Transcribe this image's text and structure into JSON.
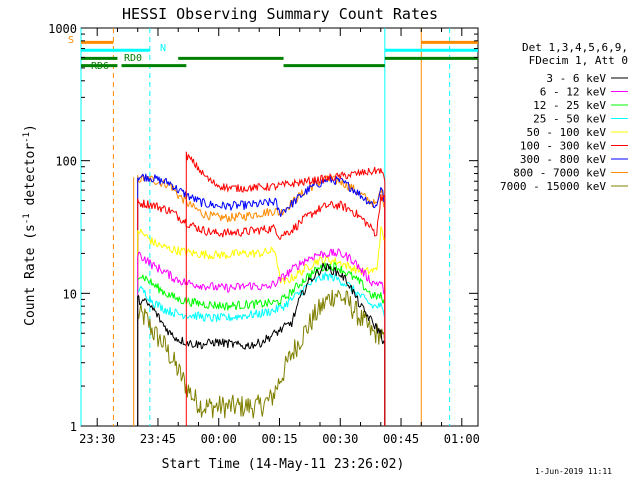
{
  "chart_data": {
    "type": "line",
    "title": "HESSI Observing Summary Count Rates",
    "xlabel": "Start Time (14-May-11 23:26:02)",
    "ylabel": "Count Rate (s^-1 detector^-1)",
    "ylabel_parts": {
      "main": "Count Rate (s",
      "sup1": "-1",
      "mid": " detector",
      "sup2": "-1",
      "end": ")"
    },
    "yscale": "log",
    "ylim": [
      1,
      1000
    ],
    "xlim_minutes": [
      0,
      98
    ],
    "x_ticks": [
      {
        "label": "23:30",
        "minute": 4
      },
      {
        "label": "23:45",
        "minute": 19
      },
      {
        "label": "00:00",
        "minute": 34
      },
      {
        "label": "00:15",
        "minute": 49
      },
      {
        "label": "00:30",
        "minute": 64
      },
      {
        "label": "00:45",
        "minute": 79
      },
      {
        "label": "01:00",
        "minute": 94
      }
    ],
    "y_ticks": [
      {
        "label": "1",
        "value": 1
      },
      {
        "label": "10",
        "value": 10
      },
      {
        "label": "100",
        "value": 100
      },
      {
        "label": "1000",
        "value": 1000
      }
    ],
    "legend_header": [
      "Det 1,3,4,5,6,9,",
      "FDecim 1, Att 0"
    ],
    "series": [
      {
        "name": "3 - 6 keV",
        "color": "#000000",
        "points": [
          [
            14,
            9
          ],
          [
            16,
            8.5
          ],
          [
            18,
            7.5
          ],
          [
            20,
            6
          ],
          [
            22,
            5
          ],
          [
            24,
            4.5
          ],
          [
            27,
            4.2
          ],
          [
            30,
            4.1
          ],
          [
            33,
            4.3
          ],
          [
            36,
            4.2
          ],
          [
            40,
            4.0
          ],
          [
            44,
            4.2
          ],
          [
            48,
            5
          ],
          [
            52,
            6
          ],
          [
            54,
            9
          ],
          [
            56,
            12
          ],
          [
            58,
            14
          ],
          [
            60,
            16
          ],
          [
            62,
            15
          ],
          [
            64,
            14
          ],
          [
            66,
            12
          ],
          [
            69,
            8
          ],
          [
            72,
            6
          ],
          [
            74,
            5
          ],
          [
            75,
            4
          ]
        ]
      },
      {
        "name": "6 - 12 keV",
        "color": "#ff00ff",
        "points": [
          [
            14,
            20
          ],
          [
            16,
            18
          ],
          [
            18,
            16
          ],
          [
            20,
            15
          ],
          [
            23,
            13
          ],
          [
            26,
            12
          ],
          [
            30,
            11.5
          ],
          [
            34,
            11
          ],
          [
            38,
            11
          ],
          [
            42,
            11.5
          ],
          [
            46,
            11
          ],
          [
            49,
            12.5
          ],
          [
            52,
            15
          ],
          [
            55,
            17.5
          ],
          [
            58,
            19.5
          ],
          [
            61,
            20
          ],
          [
            64,
            20
          ],
          [
            67,
            18
          ],
          [
            70,
            14
          ],
          [
            72,
            12
          ],
          [
            74,
            12
          ],
          [
            75,
            10
          ]
        ]
      },
      {
        "name": "12 - 25 keV",
        "color": "#00ff00",
        "points": [
          [
            14,
            14
          ],
          [
            16,
            13
          ],
          [
            18,
            11.5
          ],
          [
            21,
            10
          ],
          [
            24,
            9
          ],
          [
            28,
            8.5
          ],
          [
            32,
            8.2
          ],
          [
            36,
            8
          ],
          [
            40,
            8.2
          ],
          [
            44,
            8.3
          ],
          [
            48,
            8.5
          ],
          [
            50,
            9
          ],
          [
            53,
            11
          ],
          [
            56,
            13.5
          ],
          [
            59,
            15.5
          ],
          [
            61,
            16
          ],
          [
            63,
            16
          ],
          [
            66,
            14
          ],
          [
            69,
            12
          ],
          [
            72,
            9.5
          ],
          [
            74,
            9.5
          ],
          [
            75,
            8
          ]
        ]
      },
      {
        "name": "25 - 50 keV",
        "color": "#00ffff",
        "points": [
          [
            14,
            11
          ],
          [
            16,
            10
          ],
          [
            18,
            8.5
          ],
          [
            21,
            7.5
          ],
          [
            24,
            7
          ],
          [
            28,
            6.8
          ],
          [
            32,
            6.5
          ],
          [
            36,
            6.5
          ],
          [
            40,
            6.8
          ],
          [
            44,
            7
          ],
          [
            48,
            7.5
          ],
          [
            50,
            8
          ],
          [
            53,
            9.5
          ],
          [
            56,
            11.5
          ],
          [
            59,
            13
          ],
          [
            61,
            13.5
          ],
          [
            63,
            13
          ],
          [
            66,
            11.5
          ],
          [
            69,
            9.5
          ],
          [
            72,
            8
          ],
          [
            74,
            8
          ],
          [
            75,
            6.5
          ]
        ]
      },
      {
        "name": "50 - 100 keV",
        "color": "#ffff00",
        "points": [
          [
            14,
            30
          ],
          [
            16,
            27
          ],
          [
            18,
            24
          ],
          [
            21,
            22
          ],
          [
            24,
            21
          ],
          [
            28,
            20
          ],
          [
            32,
            19.5
          ],
          [
            36,
            19.5
          ],
          [
            40,
            20
          ],
          [
            44,
            20
          ],
          [
            48,
            21
          ],
          [
            49,
            13
          ],
          [
            50,
            12
          ],
          [
            52,
            13
          ],
          [
            55,
            15
          ],
          [
            58,
            17.5
          ],
          [
            61,
            18
          ],
          [
            64,
            17
          ],
          [
            67,
            15.5
          ],
          [
            70,
            14.5
          ],
          [
            73,
            15
          ],
          [
            74,
            30
          ],
          [
            75,
            25
          ]
        ]
      },
      {
        "name": "100 - 300 keV",
        "color": "#ff0000",
        "points": [
          [
            14,
            48
          ],
          [
            17,
            47
          ],
          [
            20,
            44
          ],
          [
            22,
            42
          ],
          [
            24,
            38
          ],
          [
            27,
            33
          ],
          [
            30,
            30
          ],
          [
            33,
            28.5
          ],
          [
            36,
            28.5
          ],
          [
            40,
            29
          ],
          [
            44,
            30
          ],
          [
            48,
            31
          ],
          [
            49,
            27
          ],
          [
            52,
            30
          ],
          [
            55,
            36
          ],
          [
            58,
            42
          ],
          [
            61,
            46
          ],
          [
            64,
            46
          ],
          [
            67,
            42
          ],
          [
            70,
            35
          ],
          [
            73,
            28
          ],
          [
            74,
            55
          ],
          [
            75,
            50
          ]
        ]
      },
      {
        "name": "300 - 800 keV",
        "color": "#0000ff",
        "points": [
          [
            14,
            76
          ],
          [
            17,
            75
          ],
          [
            20,
            70
          ],
          [
            22,
            68
          ],
          [
            24,
            60
          ],
          [
            27,
            53
          ],
          [
            30,
            48
          ],
          [
            33,
            46
          ],
          [
            36,
            45.5
          ],
          [
            40,
            46
          ],
          [
            44,
            47
          ],
          [
            48,
            49
          ],
          [
            49,
            40
          ],
          [
            52,
            47
          ],
          [
            55,
            57
          ],
          [
            58,
            66
          ],
          [
            61,
            72
          ],
          [
            64,
            70
          ],
          [
            67,
            62
          ],
          [
            70,
            52
          ],
          [
            73,
            45
          ],
          [
            74,
            65
          ],
          [
            75,
            48
          ]
        ]
      },
      {
        "name": "800 - 7000 keV",
        "color": "#ff8c00",
        "points": [
          [
            14,
            73
          ],
          [
            17,
            73
          ],
          [
            20,
            68
          ],
          [
            22,
            66
          ],
          [
            24,
            55
          ],
          [
            27,
            46
          ],
          [
            30,
            40
          ],
          [
            33,
            37.5
          ],
          [
            36,
            37
          ],
          [
            40,
            38
          ],
          [
            44,
            40
          ],
          [
            48,
            42
          ],
          [
            49,
            40
          ],
          [
            52,
            48
          ],
          [
            55,
            58
          ],
          [
            58,
            67
          ],
          [
            61,
            72
          ],
          [
            64,
            70
          ],
          [
            67,
            62
          ],
          [
            70,
            53
          ],
          [
            73,
            46
          ],
          [
            74,
            62
          ],
          [
            75,
            45
          ]
        ]
      },
      {
        "name": "7000 - 15000 keV",
        "color": "#808000",
        "points": [
          [
            14,
            7
          ],
          [
            16,
            6.5
          ],
          [
            18,
            5
          ],
          [
            20,
            4.3
          ],
          [
            22,
            3.4
          ],
          [
            24,
            2.6
          ],
          [
            26,
            2.0
          ],
          [
            28,
            1.6
          ],
          [
            30,
            1.4
          ],
          [
            33,
            1.4
          ],
          [
            36,
            1.4
          ],
          [
            40,
            1.4
          ],
          [
            44,
            1.4
          ],
          [
            47,
            1.6
          ],
          [
            49,
            2.2
          ],
          [
            52,
            3.5
          ],
          [
            55,
            5
          ],
          [
            58,
            7
          ],
          [
            61,
            9
          ],
          [
            63,
            10
          ],
          [
            66,
            8.5
          ],
          [
            69,
            6.5
          ],
          [
            72,
            5
          ],
          [
            74,
            5
          ],
          [
            75,
            4
          ]
        ]
      }
    ],
    "peak_series": {
      "name": "100 - 300 keV",
      "color": "#ff0000",
      "points": [
        [
          26,
          110
        ],
        [
          28,
          95
        ],
        [
          30,
          80
        ],
        [
          32,
          70
        ],
        [
          34,
          65
        ],
        [
          37,
          62
        ],
        [
          40,
          62
        ],
        [
          44,
          63
        ],
        [
          48,
          64
        ],
        [
          74,
          85
        ],
        [
          75,
          70
        ]
      ]
    },
    "state_bars": [
      {
        "label": "S",
        "color": "#ff8c00",
        "level": 780,
        "segments": [
          [
            0,
            8
          ],
          [
            84,
            98
          ]
        ]
      },
      {
        "label": "N",
        "color": "#00ffff",
        "level": 680,
        "segments": [
          [
            0,
            17
          ],
          [
            75,
            98
          ]
        ]
      },
      {
        "label": "RD0",
        "color": "#008000",
        "level": 590,
        "segments": [
          [
            0,
            9
          ],
          [
            24,
            50
          ],
          [
            75,
            98
          ]
        ]
      },
      {
        "label": "RD6",
        "color": "#008000",
        "level": 520,
        "segments": [
          [
            0,
            9
          ],
          [
            10,
            26
          ],
          [
            50,
            75
          ]
        ]
      }
    ],
    "vertical_markers": [
      {
        "minute": 0,
        "color": "#00ffff",
        "style": "solid"
      },
      {
        "minute": 8,
        "color": "#ff8c00",
        "style": "dashed"
      },
      {
        "minute": 17,
        "color": "#00ffff",
        "style": "dashed"
      },
      {
        "minute": 75,
        "color": "#00ffff",
        "style": "solid"
      },
      {
        "minute": 84,
        "color": "#ff8c00",
        "style": "solid"
      },
      {
        "minute": 91,
        "color": "#00ffff",
        "style": "dashed"
      }
    ],
    "data_window": {
      "start_minute": 13,
      "end_minute": 75,
      "color": "#ff8c00"
    },
    "footer": "1-Jun-2019 11:11"
  }
}
